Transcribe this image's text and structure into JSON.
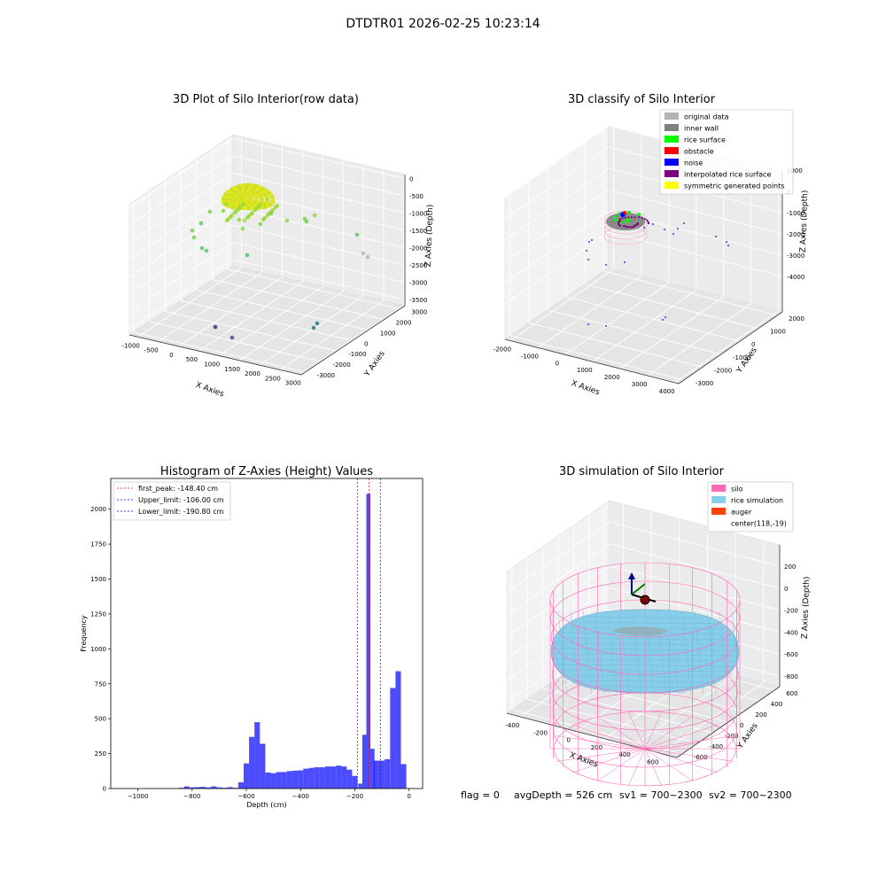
{
  "suptitle": "DTDTR01 2026-02-25 10:23:14",
  "footer": {
    "flag": "flag = 0",
    "avg_depth": "avgDepth = 526 cm",
    "sv1": "sv1 = 700~2300",
    "sv2": "sv2 = 700~2300"
  },
  "chart_data": [
    {
      "type": "scatter",
      "projection": "3d",
      "title": "3D Plot of Silo Interior(row data)",
      "xlabel": "X Axies",
      "ylabel": "Y Axies",
      "zlabel": "Z Axies (Depth)",
      "x_ticks": [
        "-1000",
        "-500",
        "0",
        "500",
        "1000",
        "1500",
        "2000",
        "2500",
        "3000"
      ],
      "y_ticks": [
        "-3000",
        "-2000",
        "-1000",
        "0",
        "1000",
        "2000",
        "3000"
      ],
      "z_ticks": [
        "0",
        "-500",
        "-1000",
        "-1500",
        "-2000",
        "-2500",
        "-3000",
        "-3500"
      ],
      "colormap": "viridis",
      "grid": true
    },
    {
      "type": "scatter",
      "projection": "3d",
      "title": "3D classify of Silo Interior",
      "xlabel": "X Axies",
      "ylabel": "Y Axies",
      "zlabel": "Z Axies (Depth)",
      "x_ticks": [
        "-2000",
        "-1000",
        "0",
        "1000",
        "2000",
        "3000",
        "4000"
      ],
      "y_ticks": [
        "-3000",
        "-2000",
        "-1000",
        "0",
        "1000",
        "2000"
      ],
      "z_ticks": [
        "1000",
        "0",
        "-1000",
        "-2000",
        "-3000",
        "-4000"
      ],
      "legend": [
        {
          "label": "original data",
          "color": "#b4b4b4"
        },
        {
          "label": "inner wall",
          "color": "#808080"
        },
        {
          "label": "rice surface",
          "color": "#00ff00"
        },
        {
          "label": "obstacle",
          "color": "#ff0000"
        },
        {
          "label": "noise",
          "color": "#0000ff"
        },
        {
          "label": "interpolated rice surface",
          "color": "#800080"
        },
        {
          "label": "symmetric generated points",
          "color": "#ffff00"
        }
      ],
      "legend_position": "top-right",
      "grid": true
    },
    {
      "type": "bar",
      "title": "Histogram of Z-Axies (Height) Values",
      "xlabel": "Depth (cm)",
      "ylabel": "Frequency",
      "xlim": [
        -1100,
        50
      ],
      "ylim": [
        0,
        2220
      ],
      "x_ticks": [
        -1000,
        -800,
        -600,
        -400,
        -200,
        0
      ],
      "y_ticks": [
        0,
        250,
        500,
        750,
        1000,
        1250,
        1500,
        1750,
        2000
      ],
      "bin_width": 20,
      "bins": [
        {
          "x": -840,
          "v": 5
        },
        {
          "x": -820,
          "v": 15
        },
        {
          "x": -800,
          "v": 8
        },
        {
          "x": -780,
          "v": 10
        },
        {
          "x": -760,
          "v": 12
        },
        {
          "x": -740,
          "v": 8
        },
        {
          "x": -720,
          "v": 15
        },
        {
          "x": -700,
          "v": 8
        },
        {
          "x": -680,
          "v": 6
        },
        {
          "x": -660,
          "v": 10
        },
        {
          "x": -640,
          "v": 5
        },
        {
          "x": -620,
          "v": 45
        },
        {
          "x": -600,
          "v": 180
        },
        {
          "x": -580,
          "v": 370
        },
        {
          "x": -560,
          "v": 475
        },
        {
          "x": -540,
          "v": 320
        },
        {
          "x": -520,
          "v": 115
        },
        {
          "x": -500,
          "v": 110
        },
        {
          "x": -480,
          "v": 118
        },
        {
          "x": -460,
          "v": 118
        },
        {
          "x": -440,
          "v": 125
        },
        {
          "x": -420,
          "v": 128
        },
        {
          "x": -400,
          "v": 130
        },
        {
          "x": -380,
          "v": 142
        },
        {
          "x": -360,
          "v": 148
        },
        {
          "x": -340,
          "v": 152
        },
        {
          "x": -320,
          "v": 152
        },
        {
          "x": -300,
          "v": 158
        },
        {
          "x": -280,
          "v": 158
        },
        {
          "x": -260,
          "v": 164
        },
        {
          "x": -240,
          "v": 158
        },
        {
          "x": -220,
          "v": 135
        },
        {
          "x": -200,
          "v": 90
        },
        {
          "x": -180,
          "v": 35
        },
        {
          "x": -165,
          "v": 385
        },
        {
          "x": -150,
          "v": 2110
        },
        {
          "x": -135,
          "v": 285
        },
        {
          "x": -120,
          "v": 200
        },
        {
          "x": -100,
          "v": 200
        },
        {
          "x": -80,
          "v": 210
        },
        {
          "x": -60,
          "v": 720
        },
        {
          "x": -40,
          "v": 840
        },
        {
          "x": -20,
          "v": 175
        }
      ],
      "color": "#0000ff",
      "reference_lines": [
        {
          "label": "first_peak: -148.40 cm",
          "x": -148.4,
          "color": "#ff0000"
        },
        {
          "label": "Upper_limit: -106.00 cm",
          "x": -106.0,
          "color": "#0000ff"
        },
        {
          "label": "Lower_limit: -190.80 cm",
          "x": -190.8,
          "color": "#0000ff"
        }
      ],
      "legend_position": "top-left",
      "grid": false
    },
    {
      "type": "surface",
      "projection": "3d",
      "title": "3D simulation of Silo Interior",
      "xlabel": "X Axies",
      "ylabel": "Y Axies",
      "zlabel": "Z Axies (Depth)",
      "x_ticks": [
        "-400",
        "-200",
        "0",
        "200",
        "400",
        "600"
      ],
      "y_ticks": [
        "-600",
        "-400",
        "-200",
        "0",
        "200",
        "400",
        "600"
      ],
      "z_ticks": [
        "200",
        "0",
        "-200",
        "-400",
        "-600",
        "-800"
      ],
      "legend": [
        {
          "label": "silo",
          "color": "#ff69b4"
        },
        {
          "label": "rice simulation",
          "color": "#87ceeb"
        },
        {
          "label": "auger",
          "color": "#ff4500"
        },
        {
          "label": "center(118,-19)",
          "color": ""
        }
      ],
      "legend_position": "top-right",
      "grid": true
    }
  ]
}
